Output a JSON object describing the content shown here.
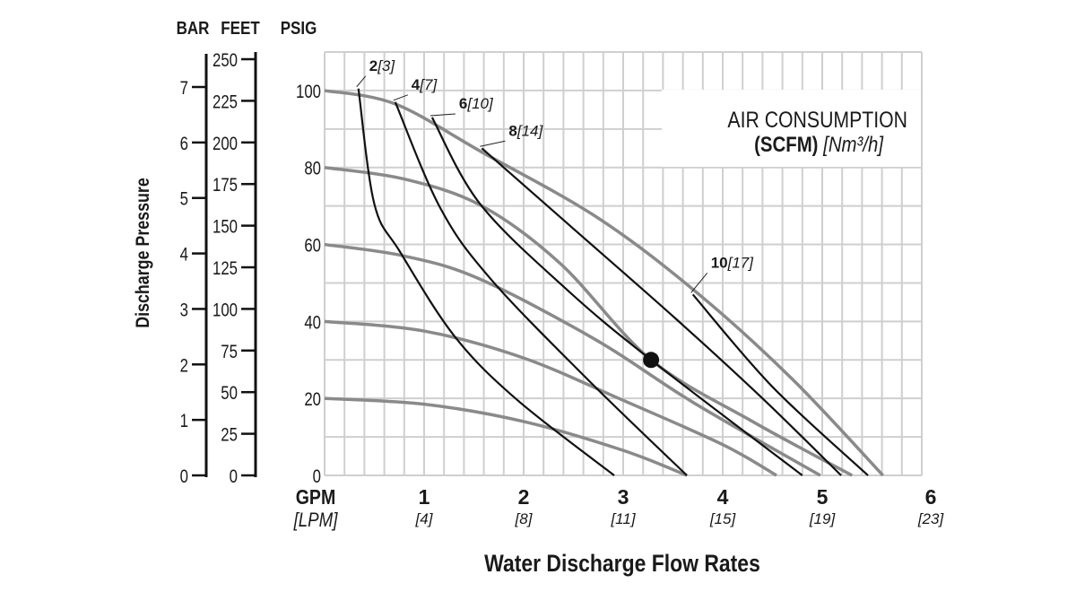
{
  "chart_data": {
    "type": "line",
    "xlabel": "Water Discharge Flow Rates",
    "x_unit": "GPM",
    "x_unit_metric": "[LPM]",
    "xlim": [
      0,
      6
    ],
    "x_ticks": [
      {
        "value": 1,
        "label": "1",
        "metric": "[4]"
      },
      {
        "value": 2,
        "label": "2",
        "metric": "[8]"
      },
      {
        "value": 3,
        "label": "3",
        "metric": "[11]"
      },
      {
        "value": 4,
        "label": "4",
        "metric": "[15]"
      },
      {
        "value": 5,
        "label": "5",
        "metric": "[19]"
      },
      {
        "value": 6,
        "label": "6",
        "metric": "[23]"
      }
    ],
    "ylabel": "Discharge Pressure",
    "ylim": [
      0,
      110
    ],
    "y_axes": [
      {
        "title": "BAR",
        "ticks": [
          "0",
          "1",
          "2",
          "3",
          "4",
          "5",
          "6",
          "7"
        ],
        "step": 1
      },
      {
        "title": "FEET",
        "ticks": [
          "0",
          "25",
          "50",
          "75",
          "100",
          "125",
          "150",
          "175",
          "200",
          "225",
          "250"
        ],
        "step": 25
      },
      {
        "title": "PSIG",
        "ticks": [
          "0",
          "20",
          "40",
          "60",
          "80",
          "100"
        ],
        "step": 20
      }
    ],
    "grid": true,
    "grid_x_step": 0.2,
    "grid_y_step": 10,
    "annotation_title": "AIR CONSUMPTION",
    "annotation_unit": "(SCFM)",
    "annotation_unit_metric": "[Nm³/h]",
    "colors": {
      "pressure": "#8a8a8a",
      "air": "#111111",
      "grid": "#cfcfcf"
    },
    "pressure_curves": [
      {
        "psig": 100,
        "points": [
          [
            0,
            100
          ],
          [
            0.71,
            96.5
          ],
          [
            1.58,
            84
          ],
          [
            2.74,
            67
          ],
          [
            3.74,
            47.5
          ],
          [
            4.7,
            25
          ],
          [
            5.61,
            0
          ]
        ]
      },
      {
        "psig": 80,
        "points": [
          [
            0,
            80
          ],
          [
            0.8,
            77
          ],
          [
            1.58,
            70
          ],
          [
            2.37,
            55
          ],
          [
            3.28,
            30
          ],
          [
            4.3,
            14
          ],
          [
            5.3,
            0
          ]
        ]
      },
      {
        "psig": 60,
        "points": [
          [
            0,
            60
          ],
          [
            0.8,
            57
          ],
          [
            1.56,
            51
          ],
          [
            2.74,
            35
          ],
          [
            3.7,
            19
          ],
          [
            4.98,
            0
          ]
        ]
      },
      {
        "psig": 40,
        "points": [
          [
            0,
            40
          ],
          [
            1,
            37.5
          ],
          [
            2,
            30.5
          ],
          [
            3,
            19.5
          ],
          [
            4,
            8
          ],
          [
            4.54,
            0
          ]
        ]
      },
      {
        "psig": 20,
        "points": [
          [
            0,
            20
          ],
          [
            1,
            18.5
          ],
          [
            2,
            14
          ],
          [
            3,
            6.5
          ],
          [
            3.64,
            0
          ]
        ]
      }
    ],
    "air_curves": [
      {
        "name": "2",
        "metric": "[3]",
        "points": [
          [
            0.34,
            100.5
          ],
          [
            0.5,
            70.5
          ],
          [
            0.76,
            58
          ],
          [
            1.31,
            36
          ],
          [
            1.94,
            19.5
          ],
          [
            2.91,
            0
          ]
        ]
      },
      {
        "name": "4",
        "metric": "[7]",
        "points": [
          [
            0.71,
            97
          ],
          [
            1.16,
            69.6
          ],
          [
            1.67,
            51
          ],
          [
            2.66,
            24.5
          ],
          [
            3.64,
            0
          ]
        ]
      },
      {
        "name": "6",
        "metric": "[10]",
        "points": [
          [
            1.08,
            93
          ],
          [
            1.56,
            70.6
          ],
          [
            2.42,
            48.6
          ],
          [
            3.28,
            30
          ],
          [
            4.8,
            0
          ]
        ]
      },
      {
        "name": "8",
        "metric": "[14]",
        "points": [
          [
            1.58,
            85
          ],
          [
            2.42,
            65.9
          ],
          [
            3.52,
            40.9
          ],
          [
            4.4,
            20
          ],
          [
            5.19,
            0
          ]
        ]
      },
      {
        "name": "10",
        "metric": "[17]",
        "points": [
          [
            3.7,
            47
          ],
          [
            4.5,
            23
          ],
          [
            5.46,
            0
          ]
        ]
      }
    ],
    "marker_point": [
      3.28,
      30
    ]
  }
}
